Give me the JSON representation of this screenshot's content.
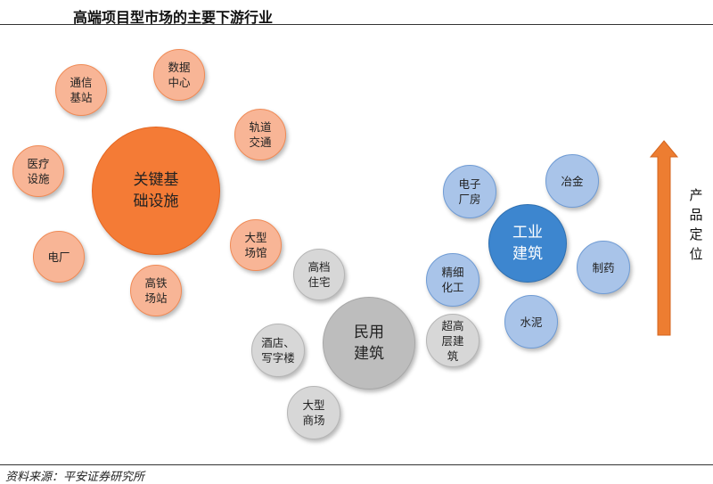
{
  "title": "高端项目型市场的主要下游行业",
  "source": "资料来源：平安证券研究所",
  "arrow_label": "产\n品\n定\n位",
  "colors": {
    "orange_main": "#F47B36",
    "orange_small": "#F8B596",
    "gray_main": "#BDBDBD",
    "gray_small": "#D7D7D7",
    "blue_main": "#3D86CF",
    "blue_small": "#A9C4E9",
    "arrow": "#ED7D31"
  },
  "clusters": {
    "infrastructure": {
      "label": "关键基\n础设施",
      "children": [
        "通信\n基站",
        "数据\n中心",
        "轨道\n交通",
        "医疗\n设施",
        "电厂",
        "大型\n场馆",
        "高铁\n场站"
      ]
    },
    "civil": {
      "label": "民用\n建筑",
      "children": [
        "高档\n住宅",
        "酒店、\n写字楼",
        "大型\n商场",
        "超高\n层建\n筑"
      ]
    },
    "industrial": {
      "label": "工业\n建筑",
      "children": [
        "电子\n厂房",
        "冶金",
        "精细\n化工",
        "制药",
        "水泥"
      ]
    }
  }
}
